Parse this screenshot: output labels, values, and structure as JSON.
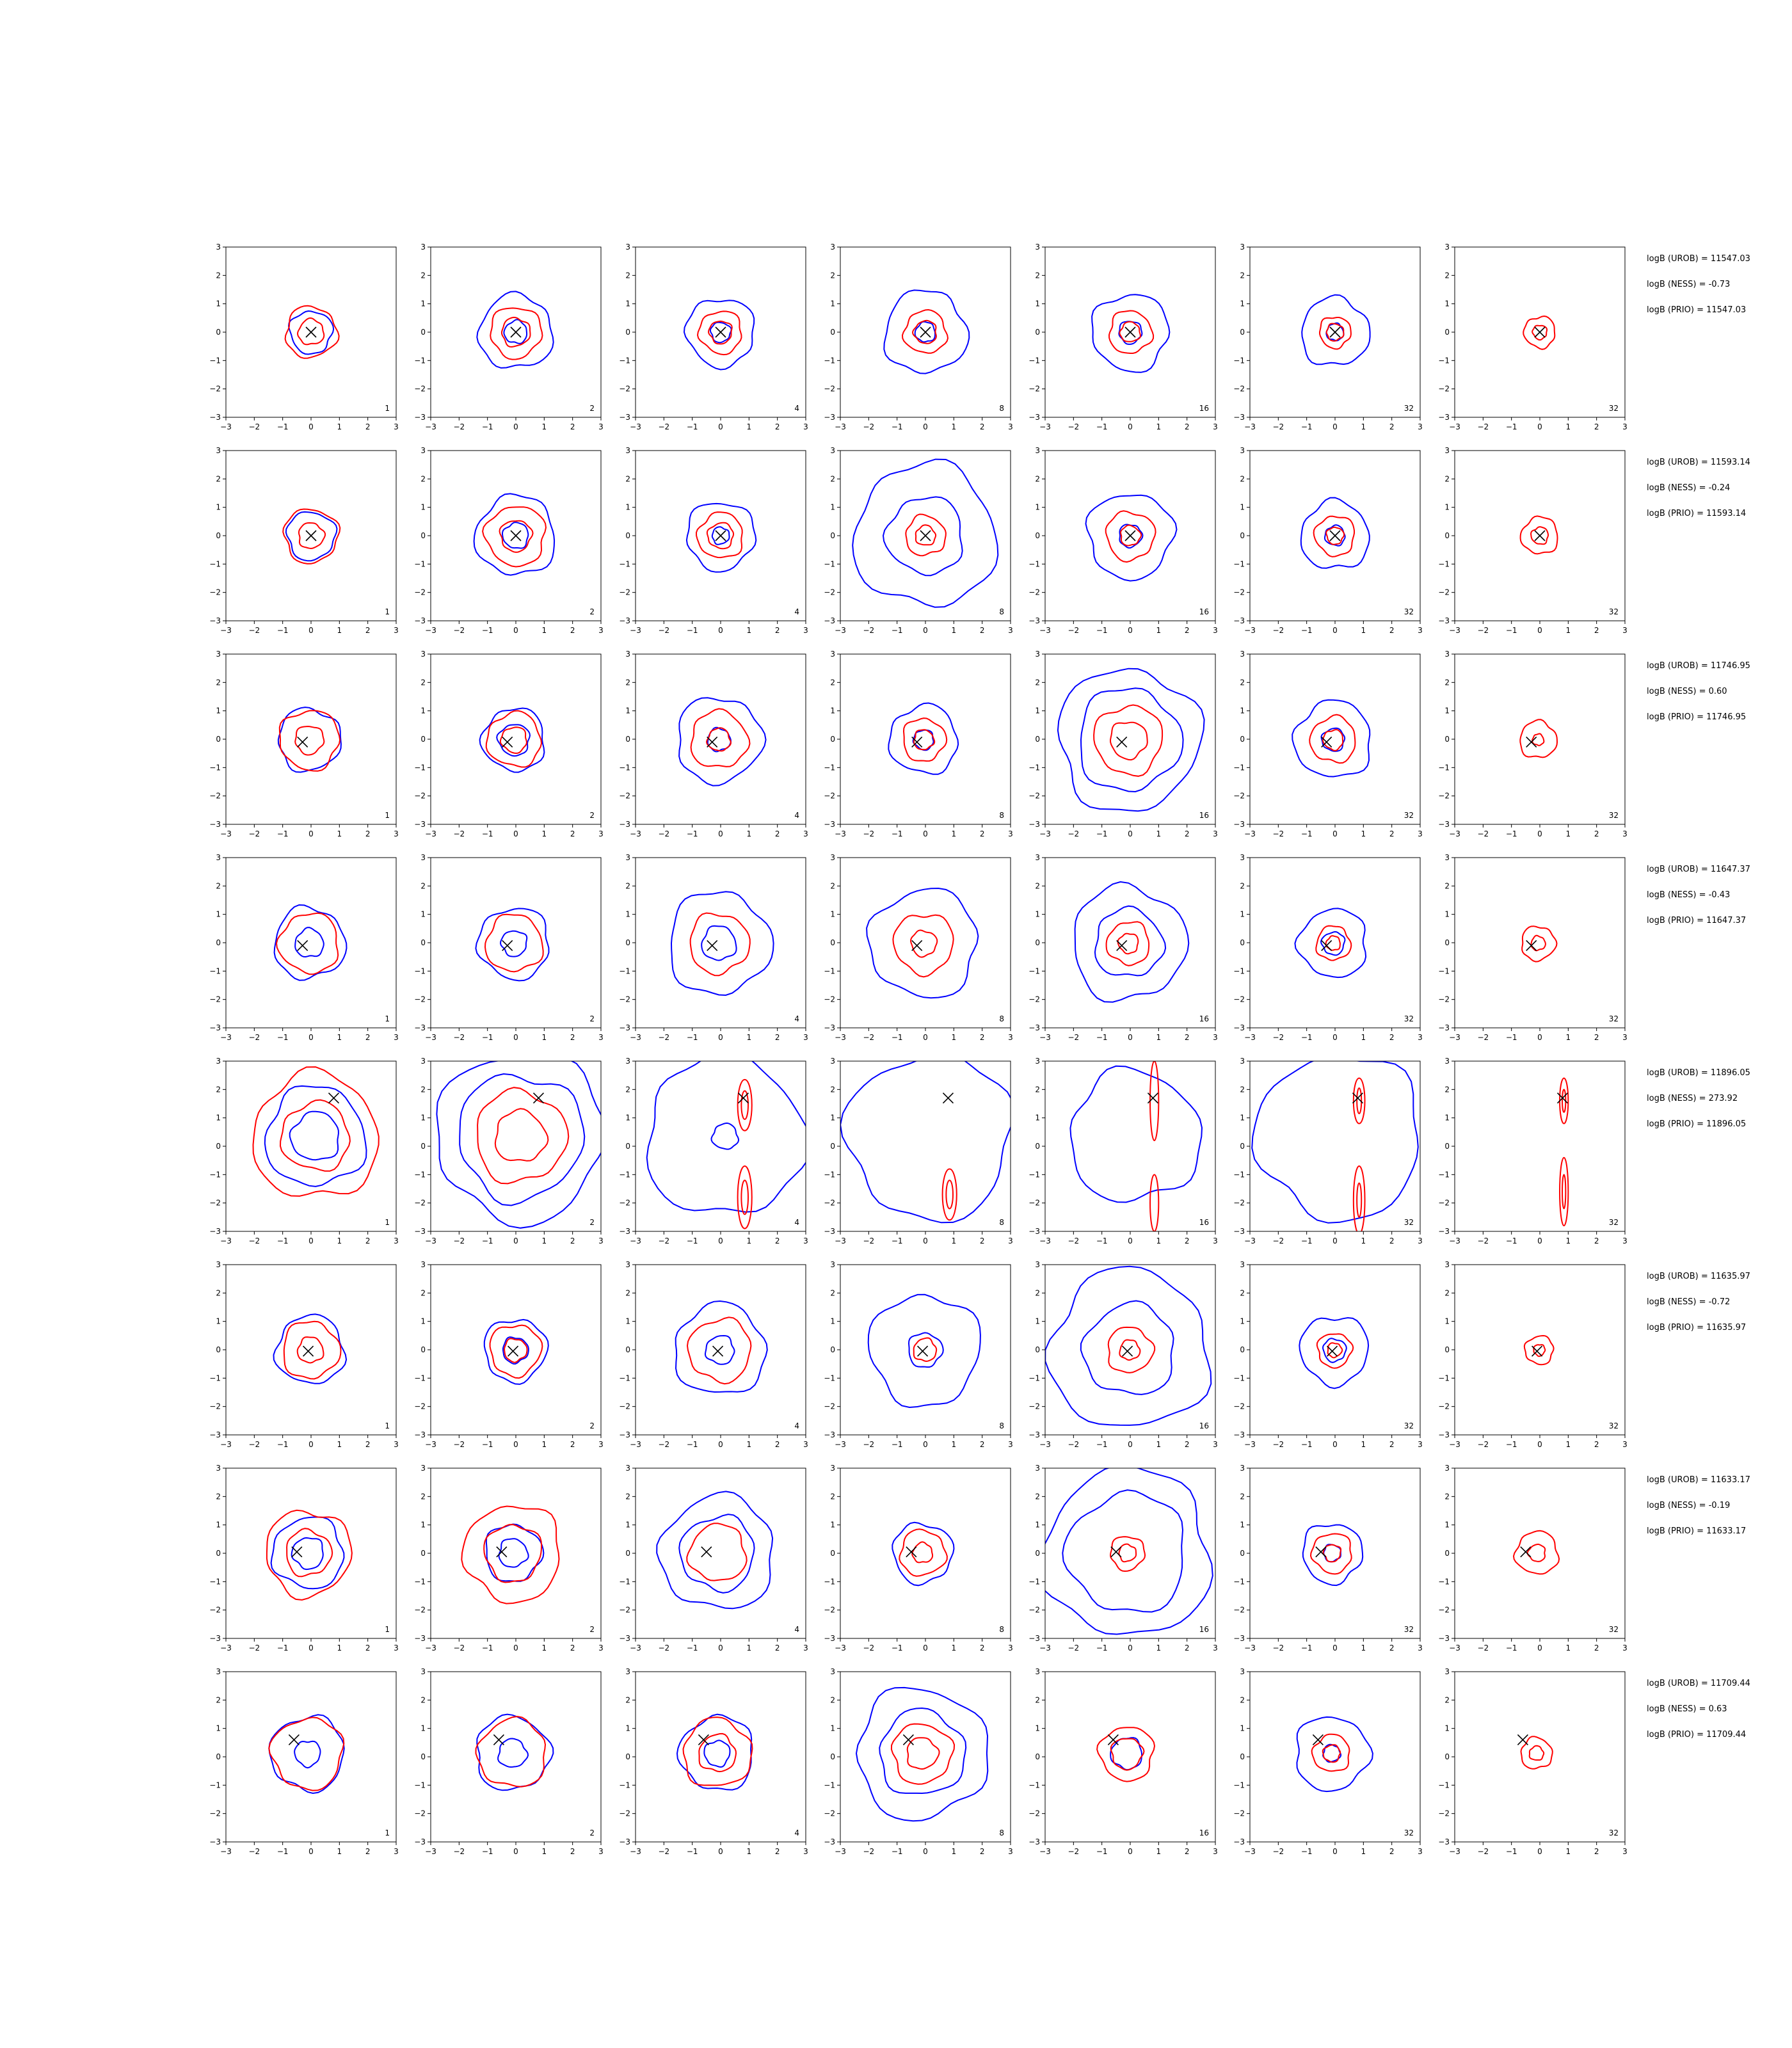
{
  "figure": {
    "layout": "8 rows x 7 columns of contour panels; annotation text to the right of each row",
    "axis": {
      "xlim": [
        -3,
        3
      ],
      "ylim": [
        -3,
        3
      ],
      "ticks": [
        -3,
        -2,
        -1,
        0,
        1,
        2,
        3
      ]
    },
    "colors": {
      "blue": "#0000ff",
      "red": "#ff0000",
      "marker": "#000000"
    }
  },
  "chart_data": {
    "type": "contour-grid",
    "column_k": [
      1,
      2,
      4,
      8,
      16,
      32,
      32
    ],
    "rows": [
      {
        "marker": [
          0.0,
          0.0
        ],
        "annotations": [
          "logB (UROB) = 11547.03",
          "logB (NESS) = -0.73",
          "logB (PRIO) = 11547.03"
        ],
        "panels": [
          {
            "blue": [
              0.75
            ],
            "red": [
              0.9,
              0.45
            ]
          },
          {
            "blue": [
              1.3,
              0.4
            ],
            "red": [
              0.9,
              0.5
            ]
          },
          {
            "blue": [
              1.2,
              0.35
            ],
            "red": [
              0.75,
              0.4
            ]
          },
          {
            "blue": [
              1.45,
              0.35
            ],
            "red": [
              0.75,
              0.4
            ]
          },
          {
            "blue": [
              1.35,
              0.4
            ],
            "red": [
              0.75,
              0.35
            ]
          },
          {
            "blue": [
              1.2,
              0.3
            ],
            "red": [
              0.55,
              0.3
            ]
          },
          {
            "blue": [],
            "red": [
              0.55,
              0.25
            ]
          }
        ]
      },
      {
        "marker": [
          0.0,
          0.0
        ],
        "annotations": [
          "logB (UROB) = 11593.14",
          "logB (NESS) = -0.24",
          "logB (PRIO) = 11593.14"
        ],
        "panels": [
          {
            "blue": [
              0.85
            ],
            "red": [
              0.95,
              0.45
            ]
          },
          {
            "blue": [
              1.4,
              0.45
            ],
            "red": [
              1.05,
              0.55
            ]
          },
          {
            "blue": [
              1.2,
              0.3
            ],
            "red": [
              0.8,
              0.45
            ]
          },
          {
            "blue": [
              2.5,
              1.35
            ],
            "red": [
              0.7,
              0.35
            ]
          },
          {
            "blue": [
              1.5,
              0.4
            ],
            "red": [
              0.85,
              0.35
            ]
          },
          {
            "blue": [
              1.2,
              0.35
            ],
            "red": [
              0.7,
              0.3
            ]
          },
          {
            "blue": [],
            "red": [
              0.65,
              0.3
            ]
          }
        ]
      },
      {
        "marker": [
          -0.3,
          -0.1
        ],
        "annotations": [
          "logB (UROB) = 11746.95",
          "logB (NESS) = 0.60",
          "logB (PRIO) = 11746.95"
        ],
        "panels": [
          {
            "blue": [
              1.1
            ],
            "red": [
              1.05,
              0.5
            ]
          },
          {
            "blue": [
              1.1,
              0.55
            ],
            "red": [
              0.95,
              0.45
            ]
          },
          {
            "blue": [
              1.5,
              0.4
            ],
            "red": [
              1.0,
              0.4
            ]
          },
          {
            "blue": [
              1.2,
              0.35
            ],
            "red": [
              0.75,
              0.35
            ]
          },
          {
            "blue": [
              2.5,
              1.8
            ],
            "red": [
              1.2,
              0.65
            ]
          },
          {
            "blue": [
              1.35,
              0.4
            ],
            "red": [
              0.8,
              0.35
            ]
          },
          {
            "blue": [],
            "red": [
              0.65,
              0.2
            ]
          }
        ]
      },
      {
        "marker": [
          -0.3,
          -0.1
        ],
        "annotations": [
          "logB (UROB) = 11647.37",
          "logB (NESS) = -0.43",
          "logB (PRIO) = 11647.37"
        ],
        "panels": [
          {
            "blue": [
              1.25,
              0.5
            ],
            "red": [
              1.05
            ]
          },
          {
            "blue": [
              1.25,
              0.45
            ],
            "red": [
              1.0
            ]
          },
          {
            "blue": [
              1.8,
              0.6
            ],
            "red": [
              1.05
            ]
          },
          {
            "blue": [
              1.9
            ],
            "red": [
              1.05,
              0.45
            ]
          },
          {
            "blue": [
              2.0,
              1.2
            ],
            "red": [
              0.75,
              0.35
            ]
          },
          {
            "blue": [
              1.2,
              0.4
            ],
            "red": [
              0.6,
              0.25
            ]
          },
          {
            "blue": [],
            "red": [
              0.6,
              0.25
            ]
          }
        ]
      },
      {
        "marker": [
          0.8,
          1.7
        ],
        "annotations": [
          "logB (UROB) = 11896.05",
          "logB (NESS) = 273.92",
          "logB (PRIO) = 11896.05"
        ],
        "panels": [
          {
            "blue": [
              1.75,
              0.85
            ],
            "red": [
              2.2,
              1.2
            ]
          },
          {
            "blue": [
              2.95,
              2.2
            ],
            "red": [
              1.6,
              0.9
            ]
          },
          {
            "blue": [
              2.8,
              0.45
            ],
            "red": []
          },
          {
            "blue": [
              2.9
            ],
            "red": []
          },
          {
            "blue": [
              2.3
            ],
            "red": []
          },
          {
            "blue": [
              2.9
            ],
            "red": []
          },
          {
            "blue": [],
            "red": []
          }
        ]
      },
      {
        "marker": [
          -0.1,
          -0.05
        ],
        "annotations": [
          "logB (UROB) = 11635.97",
          "logB (NESS) = -0.72",
          "logB (PRIO) = 11635.97"
        ],
        "panels": [
          {
            "blue": [
              1.2
            ],
            "red": [
              1.0,
              0.45
            ]
          },
          {
            "blue": [
              1.1,
              0.45
            ],
            "red": [
              0.9,
              0.4
            ]
          },
          {
            "blue": [
              1.6,
              0.5
            ],
            "red": [
              1.1
            ]
          },
          {
            "blue": [
              1.95,
              0.6
            ],
            "red": [
              0.4
            ]
          },
          {
            "blue": [
              2.8,
              1.6
            ],
            "red": [
              0.8,
              0.35
            ]
          },
          {
            "blue": [
              1.2,
              0.4
            ],
            "red": [
              0.6,
              0.25
            ]
          },
          {
            "blue": [],
            "red": [
              0.5,
              0.2
            ]
          }
        ]
      },
      {
        "marker": [
          -0.5,
          0.05
        ],
        "annotations": [
          "logB (UROB) = 11633.17",
          "logB (NESS) = -0.19",
          "logB (PRIO) = 11633.17"
        ],
        "panels": [
          {
            "blue": [
              1.25,
              0.55
            ],
            "red": [
              1.5,
              0.8
            ]
          },
          {
            "blue": [
              1.0,
              0.5
            ],
            "red": [
              1.7,
              1.0
            ]
          },
          {
            "blue": [
              2.0,
              1.3
            ],
            "red": [
              1.0
            ]
          },
          {
            "blue": [
              1.05
            ],
            "red": [
              0.8,
              0.35
            ]
          },
          {
            "blue": [
              2.95,
              2.1
            ],
            "red": [
              0.6,
              0.3
            ]
          },
          {
            "blue": [
              1.05,
              0.3
            ],
            "red": [
              0.7,
              0.3
            ]
          },
          {
            "blue": [],
            "red": [
              0.75,
              0.3
            ]
          }
        ]
      },
      {
        "marker": [
          -0.6,
          0.6
        ],
        "annotations": [
          "logB (UROB) = 11709.44",
          "logB (NESS) = 0.63",
          "logB (PRIO) = 11709.44"
        ],
        "panels": [
          {
            "blue": [
              1.3,
              0.45
            ],
            "red": [
              1.25
            ]
          },
          {
            "blue": [
              1.3,
              0.5
            ],
            "red": [
              1.2
            ]
          },
          {
            "blue": [
              1.3,
              0.45
            ],
            "red": [
              1.2,
              0.65
            ]
          },
          {
            "blue": [
              2.3,
              1.5
            ],
            "red": [
              1.05,
              0.55
            ]
          },
          {
            "blue": [
              0.55
            ],
            "red": [
              0.95,
              0.55
            ]
          },
          {
            "blue": [
              1.3,
              0.3
            ],
            "red": [
              0.65,
              0.3
            ]
          },
          {
            "blue": [],
            "red": [
              0.55,
              0.25
            ]
          }
        ]
      }
    ],
    "elongated_contours": {
      "row": 5,
      "panels": [
        {
          "col": 3,
          "red_ellipses": [
            [
              0.85,
              1.45,
              0.25,
              0.9
            ],
            [
              0.85,
              1.45,
              0.12,
              0.5
            ],
            [
              0.85,
              -1.8,
              0.25,
              1.1
            ],
            [
              0.85,
              -1.8,
              0.12,
              0.6
            ]
          ]
        },
        {
          "col": 4,
          "red_ellipses": [
            [
              0.85,
              -1.7,
              0.25,
              0.9
            ],
            [
              0.85,
              -1.7,
              0.12,
              0.5
            ]
          ]
        },
        {
          "col": 5,
          "red_ellipses": [
            [
              0.85,
              1.6,
              0.15,
              1.4
            ],
            [
              0.85,
              -2.0,
              0.15,
              1.0
            ]
          ]
        },
        {
          "col": 6,
          "red_ellipses": [
            [
              0.85,
              1.6,
              0.2,
              0.8
            ],
            [
              0.85,
              1.6,
              0.08,
              0.45
            ],
            [
              0.85,
              -1.9,
              0.2,
              1.2
            ],
            [
              0.85,
              -1.9,
              0.08,
              0.6
            ]
          ]
        },
        {
          "col": 7,
          "red_ellipses": [
            [
              0.85,
              1.6,
              0.15,
              0.8
            ],
            [
              0.85,
              1.6,
              0.06,
              0.4
            ],
            [
              0.85,
              -1.6,
              0.15,
              1.2
            ],
            [
              0.85,
              -1.6,
              0.06,
              0.6
            ]
          ]
        }
      ]
    }
  }
}
